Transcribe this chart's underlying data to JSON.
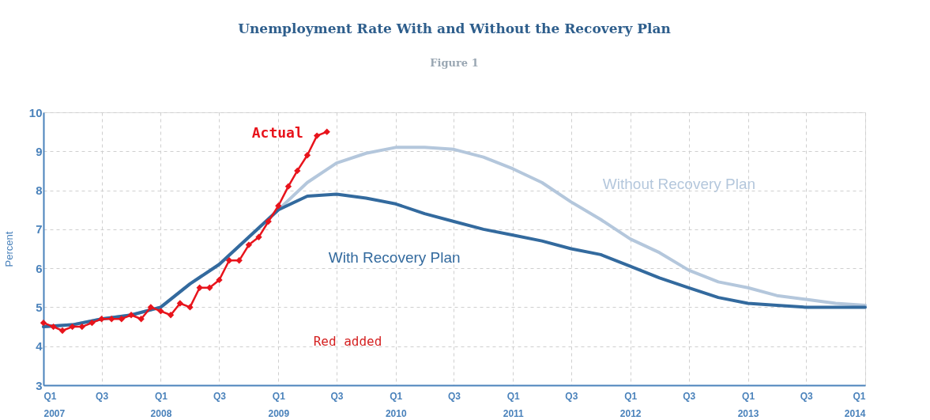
{
  "chart_data": {
    "type": "line",
    "title": "Unemployment Rate With and Without the Recovery Plan",
    "subtitle": "Figure 1",
    "ylabel": "Percent",
    "xlim": [
      "2007-01",
      "2014-01"
    ],
    "ylim": [
      3,
      10
    ],
    "yticks": [
      3,
      4,
      5,
      6,
      7,
      8,
      9,
      10
    ],
    "xticks": [
      {
        "value": "2007-01",
        "label": "Q1\n2007"
      },
      {
        "value": "2007-07",
        "label": "Q3"
      },
      {
        "value": "2008-01",
        "label": "Q1\n2008"
      },
      {
        "value": "2008-07",
        "label": "Q3"
      },
      {
        "value": "2009-01",
        "label": "Q1\n2009"
      },
      {
        "value": "2009-07",
        "label": "Q3"
      },
      {
        "value": "2010-01",
        "label": "Q1\n2010"
      },
      {
        "value": "2010-07",
        "label": "Q3"
      },
      {
        "value": "2011-01",
        "label": "Q1\n2011"
      },
      {
        "value": "2011-07",
        "label": "Q3"
      },
      {
        "value": "2012-01",
        "label": "Q1\n2012"
      },
      {
        "value": "2012-07",
        "label": "Q3"
      },
      {
        "value": "2013-01",
        "label": "Q1\n2013"
      },
      {
        "value": "2013-07",
        "label": "Q3"
      },
      {
        "value": "2014-01",
        "label": "Q1\n2014"
      }
    ],
    "grid": true,
    "line_style": "solid",
    "series": [
      {
        "name": "Without Recovery Plan",
        "color": "#b4c7dc",
        "marker": "none",
        "x": [
          "2007-01",
          "2007-04",
          "2007-07",
          "2007-10",
          "2008-01",
          "2008-04",
          "2008-07",
          "2008-10",
          "2009-01",
          "2009-04",
          "2009-07",
          "2009-10",
          "2010-01",
          "2010-04",
          "2010-07",
          "2010-10",
          "2011-01",
          "2011-04",
          "2011-07",
          "2011-10",
          "2012-01",
          "2012-04",
          "2012-07",
          "2012-10",
          "2013-01",
          "2013-04",
          "2013-07",
          "2013-10",
          "2014-01"
        ],
        "values": [
          4.5,
          4.55,
          4.7,
          4.8,
          5.0,
          5.6,
          6.1,
          6.8,
          7.5,
          8.2,
          8.7,
          8.95,
          9.1,
          9.1,
          9.05,
          8.85,
          8.55,
          8.2,
          7.7,
          7.25,
          6.75,
          6.4,
          5.95,
          5.65,
          5.5,
          5.3,
          5.2,
          5.1,
          5.05
        ]
      },
      {
        "name": "With Recovery Plan",
        "color": "#336a9e",
        "marker": "none",
        "x": [
          "2007-01",
          "2007-04",
          "2007-07",
          "2007-10",
          "2008-01",
          "2008-04",
          "2008-07",
          "2008-10",
          "2009-01",
          "2009-04",
          "2009-07",
          "2009-10",
          "2010-01",
          "2010-04",
          "2010-07",
          "2010-10",
          "2011-01",
          "2011-04",
          "2011-07",
          "2011-10",
          "2012-01",
          "2012-04",
          "2012-07",
          "2012-10",
          "2013-01",
          "2013-04",
          "2013-07",
          "2013-10",
          "2014-01"
        ],
        "values": [
          4.5,
          4.55,
          4.7,
          4.8,
          5.0,
          5.6,
          6.1,
          6.8,
          7.5,
          7.85,
          7.9,
          7.8,
          7.65,
          7.4,
          7.2,
          7.0,
          6.85,
          6.7,
          6.5,
          6.35,
          6.05,
          5.75,
          5.5,
          5.25,
          5.1,
          5.05,
          5.0,
          5.0,
          5.0
        ]
      },
      {
        "name": "Actual",
        "color": "#e8141c",
        "marker": "diamond",
        "x": [
          "2007-01",
          "2007-02",
          "2007-03",
          "2007-04",
          "2007-05",
          "2007-06",
          "2007-07",
          "2007-08",
          "2007-09",
          "2007-10",
          "2007-11",
          "2007-12",
          "2008-01",
          "2008-02",
          "2008-03",
          "2008-04",
          "2008-05",
          "2008-06",
          "2008-07",
          "2008-08",
          "2008-09",
          "2008-10",
          "2008-11",
          "2008-12",
          "2009-01",
          "2009-02",
          "2009-03",
          "2009-04",
          "2009-05",
          "2009-06"
        ],
        "values": [
          4.6,
          4.5,
          4.4,
          4.5,
          4.5,
          4.6,
          4.7,
          4.7,
          4.7,
          4.8,
          4.7,
          5.0,
          4.9,
          4.8,
          5.1,
          5.0,
          5.5,
          5.5,
          5.7,
          6.2,
          6.2,
          6.6,
          6.8,
          7.2,
          7.6,
          8.1,
          8.5,
          8.9,
          9.4,
          9.5
        ]
      }
    ],
    "annotations": [
      "Red added"
    ]
  }
}
